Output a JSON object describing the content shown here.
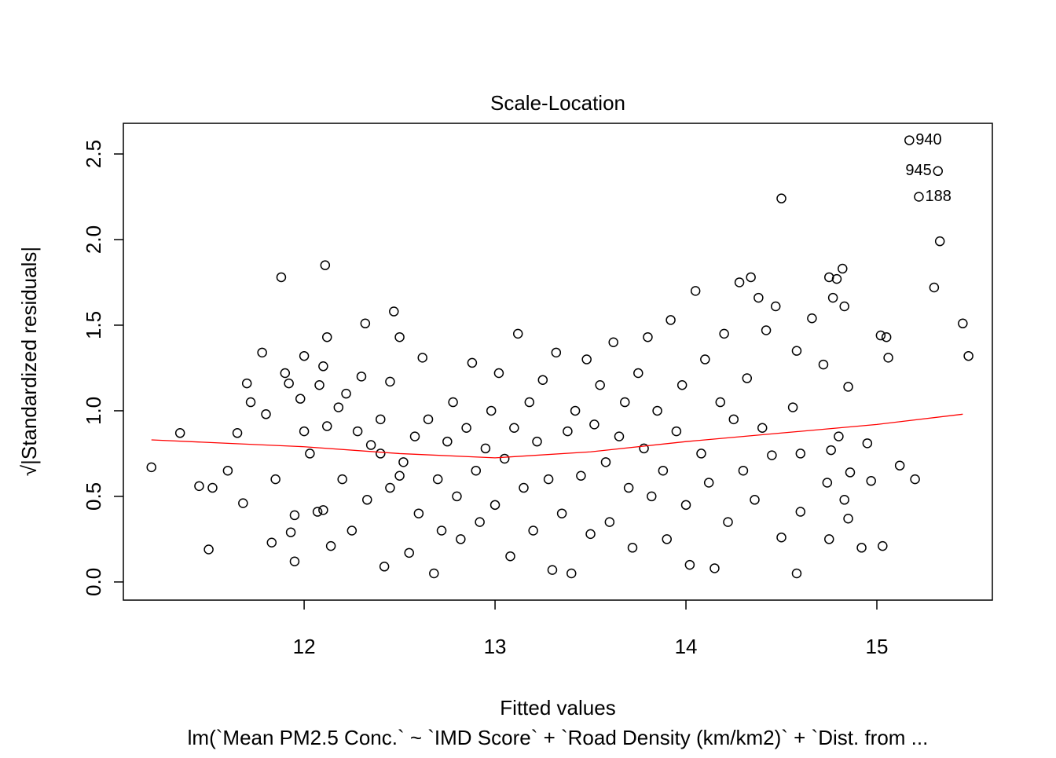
{
  "chart_data": {
    "type": "scatter",
    "title": "Scale-Location",
    "xlabel": "Fitted values",
    "ylabel": "√|Standardized residuals|",
    "subtitle": "lm(`Mean PM2.5 Conc.` ~ `IMD Score` + `Road Density (km/km2)` + `Dist. from ...",
    "xlim": [
      11.053,
      15.605
    ],
    "ylim": [
      -0.106,
      2.679
    ],
    "xticks": [
      12,
      13,
      14,
      15
    ],
    "yticks": [
      {
        "value": 0,
        "label": "0.0"
      },
      0.5,
      {
        "value": 1,
        "label": "1.0"
      },
      1.5,
      {
        "value": 2,
        "label": "2.0"
      },
      2.5
    ],
    "color": "#000000",
    "points": [
      [
        11.2,
        0.67
      ],
      [
        11.35,
        0.87
      ],
      [
        11.45,
        0.56
      ],
      [
        11.5,
        0.19
      ],
      [
        11.52,
        0.55
      ],
      [
        11.6,
        0.65
      ],
      [
        11.65,
        0.87
      ],
      [
        11.68,
        0.46
      ],
      [
        11.7,
        1.16
      ],
      [
        11.72,
        1.05
      ],
      [
        11.78,
        1.34
      ],
      [
        11.8,
        0.98
      ],
      [
        11.83,
        0.23
      ],
      [
        11.85,
        0.6
      ],
      [
        11.9,
        1.22
      ],
      [
        11.95,
        0.39
      ],
      [
        11.98,
        1.07
      ],
      [
        12.0,
        0.88
      ],
      [
        11.88,
        1.78
      ],
      [
        11.93,
        0.29
      ],
      [
        11.92,
        1.16
      ],
      [
        11.95,
        0.12
      ],
      [
        12.03,
        0.75
      ],
      [
        12.07,
        0.41
      ],
      [
        12.0,
        1.32
      ],
      [
        12.12,
        0.91
      ],
      [
        12.08,
        1.15
      ],
      [
        12.1,
        0.42
      ],
      [
        12.1,
        1.26
      ],
      [
        12.11,
        1.85
      ],
      [
        12.12,
        1.43
      ],
      [
        12.14,
        0.21
      ],
      [
        12.18,
        1.02
      ],
      [
        12.2,
        0.6
      ],
      [
        12.22,
        1.1
      ],
      [
        12.32,
        1.51
      ],
      [
        12.25,
        0.3
      ],
      [
        12.28,
        0.88
      ],
      [
        12.3,
        1.2
      ],
      [
        12.33,
        0.48
      ],
      [
        12.47,
        1.58
      ],
      [
        12.42,
        0.09
      ],
      [
        12.5,
        1.43
      ],
      [
        12.4,
        0.75
      ],
      [
        12.55,
        0.17
      ],
      [
        12.45,
        1.17
      ],
      [
        12.5,
        0.62
      ],
      [
        12.68,
        0.05
      ],
      [
        12.62,
        1.31
      ],
      [
        12.35,
        0.8
      ],
      [
        12.4,
        0.95
      ],
      [
        12.45,
        0.55
      ],
      [
        12.52,
        0.7
      ],
      [
        12.58,
        0.85
      ],
      [
        12.6,
        0.4
      ],
      [
        12.65,
        0.95
      ],
      [
        12.7,
        0.6
      ],
      [
        12.72,
        0.3
      ],
      [
        12.75,
        0.82
      ],
      [
        12.78,
        1.05
      ],
      [
        12.8,
        0.5
      ],
      [
        12.82,
        0.25
      ],
      [
        12.85,
        0.9
      ],
      [
        12.88,
        1.28
      ],
      [
        12.9,
        0.65
      ],
      [
        12.92,
        0.35
      ],
      [
        12.95,
        0.78
      ],
      [
        12.98,
        1.0
      ],
      [
        13.0,
        0.45
      ],
      [
        13.02,
        1.22
      ],
      [
        13.05,
        0.72
      ],
      [
        13.08,
        0.15
      ],
      [
        13.1,
        0.9
      ],
      [
        13.12,
        1.45
      ],
      [
        13.15,
        0.55
      ],
      [
        13.18,
        1.05
      ],
      [
        13.2,
        0.3
      ],
      [
        13.22,
        0.82
      ],
      [
        13.25,
        1.18
      ],
      [
        13.28,
        0.6
      ],
      [
        13.3,
        0.07
      ],
      [
        13.32,
        1.34
      ],
      [
        13.35,
        0.4
      ],
      [
        13.38,
        0.88
      ],
      [
        13.4,
        0.05
      ],
      [
        13.42,
        1.0
      ],
      [
        13.45,
        0.62
      ],
      [
        13.48,
        1.3
      ],
      [
        13.5,
        0.28
      ],
      [
        13.52,
        0.92
      ],
      [
        13.55,
        1.15
      ],
      [
        13.58,
        0.7
      ],
      [
        13.6,
        0.35
      ],
      [
        13.62,
        1.4
      ],
      [
        13.65,
        0.85
      ],
      [
        13.68,
        1.05
      ],
      [
        13.7,
        0.55
      ],
      [
        13.72,
        0.2
      ],
      [
        13.75,
        1.22
      ],
      [
        13.78,
        0.78
      ],
      [
        13.8,
        1.43
      ],
      [
        13.82,
        0.5
      ],
      [
        13.85,
        1.0
      ],
      [
        13.88,
        0.65
      ],
      [
        13.9,
        0.25
      ],
      [
        13.92,
        1.53
      ],
      [
        13.95,
        0.88
      ],
      [
        13.98,
        1.15
      ],
      [
        14.0,
        0.45
      ],
      [
        14.02,
        0.1
      ],
      [
        14.05,
        1.7
      ],
      [
        14.08,
        0.75
      ],
      [
        14.1,
        1.3
      ],
      [
        14.12,
        0.58
      ],
      [
        14.15,
        0.08
      ],
      [
        14.18,
        1.05
      ],
      [
        14.2,
        1.45
      ],
      [
        14.22,
        0.35
      ],
      [
        14.25,
        0.95
      ],
      [
        14.28,
        1.75
      ],
      [
        14.3,
        0.65
      ],
      [
        14.32,
        1.19
      ],
      [
        14.34,
        1.78
      ],
      [
        14.36,
        0.48
      ],
      [
        14.38,
        1.66
      ],
      [
        14.4,
        0.9
      ],
      [
        14.42,
        1.47
      ],
      [
        14.45,
        0.74
      ],
      [
        14.47,
        1.61
      ],
      [
        14.5,
        2.24
      ],
      [
        15.33,
        1.99
      ],
      [
        15.3,
        1.72
      ],
      [
        15.45,
        1.51
      ],
      [
        15.48,
        1.32
      ],
      [
        14.82,
        1.83
      ],
      [
        14.75,
        1.78
      ],
      [
        14.79,
        1.77
      ],
      [
        14.77,
        1.66
      ],
      [
        14.83,
        1.61
      ],
      [
        15.02,
        1.44
      ],
      [
        15.05,
        1.43
      ],
      [
        15.06,
        1.31
      ],
      [
        14.66,
        1.54
      ],
      [
        14.58,
        1.35
      ],
      [
        15.12,
        0.68
      ],
      [
        15.2,
        0.6
      ],
      [
        14.95,
        0.81
      ],
      [
        14.97,
        0.59
      ],
      [
        15.03,
        0.21
      ],
      [
        14.92,
        0.2
      ],
      [
        14.58,
        0.05
      ],
      [
        14.75,
        0.25
      ],
      [
        14.5,
        0.26
      ],
      [
        14.6,
        0.41
      ],
      [
        14.85,
        0.37
      ],
      [
        14.83,
        0.48
      ],
      [
        14.86,
        0.64
      ],
      [
        14.74,
        0.58
      ],
      [
        14.76,
        0.77
      ],
      [
        14.8,
        0.85
      ],
      [
        14.85,
        1.14
      ],
      [
        14.72,
        1.27
      ],
      [
        14.56,
        1.02
      ],
      [
        14.6,
        0.75
      ],
      [
        15.17,
        2.58
      ],
      [
        15.32,
        2.4
      ],
      [
        15.22,
        2.25
      ]
    ],
    "annotations": [
      {
        "text": "940",
        "x": 15.17,
        "y": 2.58,
        "pos": "right"
      },
      {
        "text": "945",
        "x": 15.32,
        "y": 2.4,
        "pos": "left"
      },
      {
        "text": "188",
        "x": 15.22,
        "y": 2.25,
        "pos": "right"
      }
    ],
    "smooth": {
      "color": "#ff0000",
      "x": [
        11.2,
        11.6,
        12.0,
        12.5,
        13.0,
        13.5,
        14.0,
        14.5,
        15.0,
        15.45
      ],
      "y": [
        0.83,
        0.81,
        0.79,
        0.75,
        0.725,
        0.76,
        0.82,
        0.87,
        0.92,
        0.98
      ]
    }
  }
}
